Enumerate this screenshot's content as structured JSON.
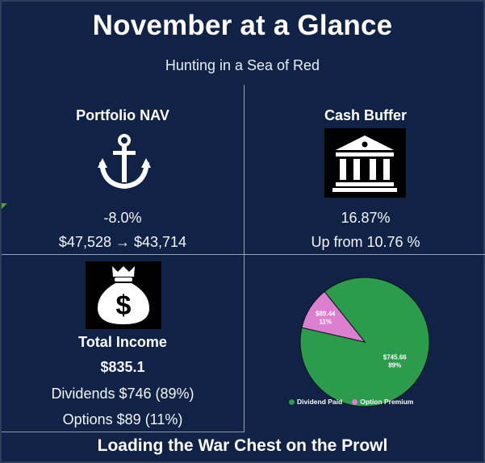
{
  "header": {
    "title": "November at a Glance",
    "subtitle": "Hunting in a Sea of Red"
  },
  "portfolio_nav": {
    "title": "Portfolio NAV",
    "icon": "anchor-icon",
    "change": "-8.0%",
    "range": "$47,528 → $43,714"
  },
  "cash_buffer": {
    "title": "Cash Buffer",
    "icon": "bank-icon",
    "value": "16.87%",
    "note": "Up from 10.76 %"
  },
  "total_income": {
    "icon": "money-bag-icon",
    "title": "Total Income",
    "total": "$835.1",
    "dividends": "Dividends $746 (89%)",
    "options": "Options $89 (11%)"
  },
  "footer": {
    "text": "Loading the War Chest on the Prowl"
  },
  "chart_data": {
    "type": "pie",
    "categories": [
      "Dividend Paid",
      "Option Premium"
    ],
    "values": [
      745.66,
      89.44
    ],
    "labels": [
      {
        "value": "$745.66",
        "percent": "89%"
      },
      {
        "value": "$89.44",
        "percent": "11%"
      }
    ],
    "colors": [
      "#2a9c4c",
      "#dd7fd0"
    ],
    "legend": "bottom"
  }
}
